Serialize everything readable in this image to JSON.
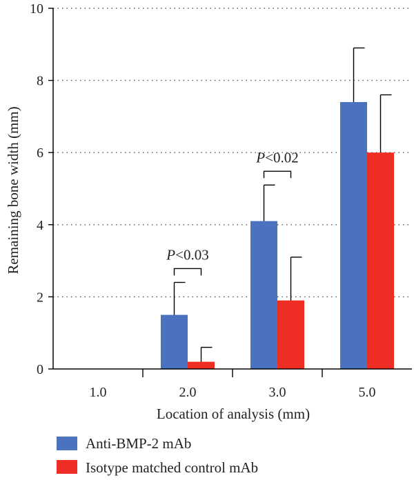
{
  "chart_data": {
    "type": "bar",
    "title": "",
    "xlabel": "Location of analysis (mm)",
    "ylabel": "Remaining bone width (mm)",
    "categories": [
      "1.0",
      "2.0",
      "3.0",
      "5.0"
    ],
    "ylim": [
      0,
      10
    ],
    "yticks": [
      "0",
      "2",
      "4",
      "6",
      "8",
      "10"
    ],
    "grid": "horizontal dotted",
    "legend_position": "bottom-left",
    "series": [
      {
        "name": "Anti-BMP-2 mAb",
        "color": "#4a72bf",
        "values": [
          0,
          1.5,
          4.1,
          7.4
        ],
        "errors": [
          0,
          0.9,
          1.0,
          1.5
        ]
      },
      {
        "name": "Isotype matched control mAb",
        "color": "#ee2e24",
        "values": [
          0,
          0.2,
          1.9,
          6.0
        ],
        "errors": [
          0,
          0.4,
          1.2,
          1.6
        ]
      }
    ],
    "annotations": [
      {
        "category": "2.0",
        "p": "P",
        "text": "<0.03"
      },
      {
        "category": "3.0",
        "p": "P",
        "text": "<0.02"
      }
    ]
  }
}
